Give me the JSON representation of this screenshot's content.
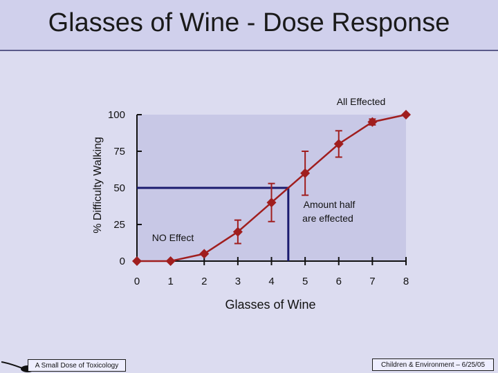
{
  "slide": {
    "title": "Glasses of Wine - Dose Response",
    "footer_left": "A Small Dose of Toxicology",
    "footer_right": "Children & Environment – 6/25/05"
  },
  "colors": {
    "background": "#dcdcf0",
    "plot_area": "#c8c8e6",
    "series": "#a01e1e",
    "guide": "#1a1a6e"
  },
  "chart_data": {
    "type": "line",
    "title": "",
    "xlabel": "Glasses of Wine",
    "ylabel": "% Difficulty Walking",
    "xlim": [
      0,
      8
    ],
    "ylim": [
      0,
      100
    ],
    "x_ticks": [
      "0",
      "1",
      "2",
      "3",
      "4",
      "5",
      "6",
      "7",
      "8"
    ],
    "y_ticks": [
      "0",
      "25",
      "50",
      "75",
      "100"
    ],
    "grid": false,
    "series": [
      {
        "x": [
          0,
          1,
          2,
          3,
          4,
          5,
          6,
          7,
          8
        ],
        "y": [
          0,
          0,
          5,
          20,
          40,
          60,
          80,
          95,
          100
        ],
        "error": [
          0,
          0,
          0,
          8,
          13,
          15,
          9,
          2,
          0
        ]
      }
    ],
    "reference": {
      "x": 4.5,
      "y": 50
    },
    "annotations": {
      "all_effected": "All Effected",
      "amount_half_line1": "Amount half",
      "amount_half_line2": "are effected",
      "no_effect": "NO Effect"
    }
  }
}
